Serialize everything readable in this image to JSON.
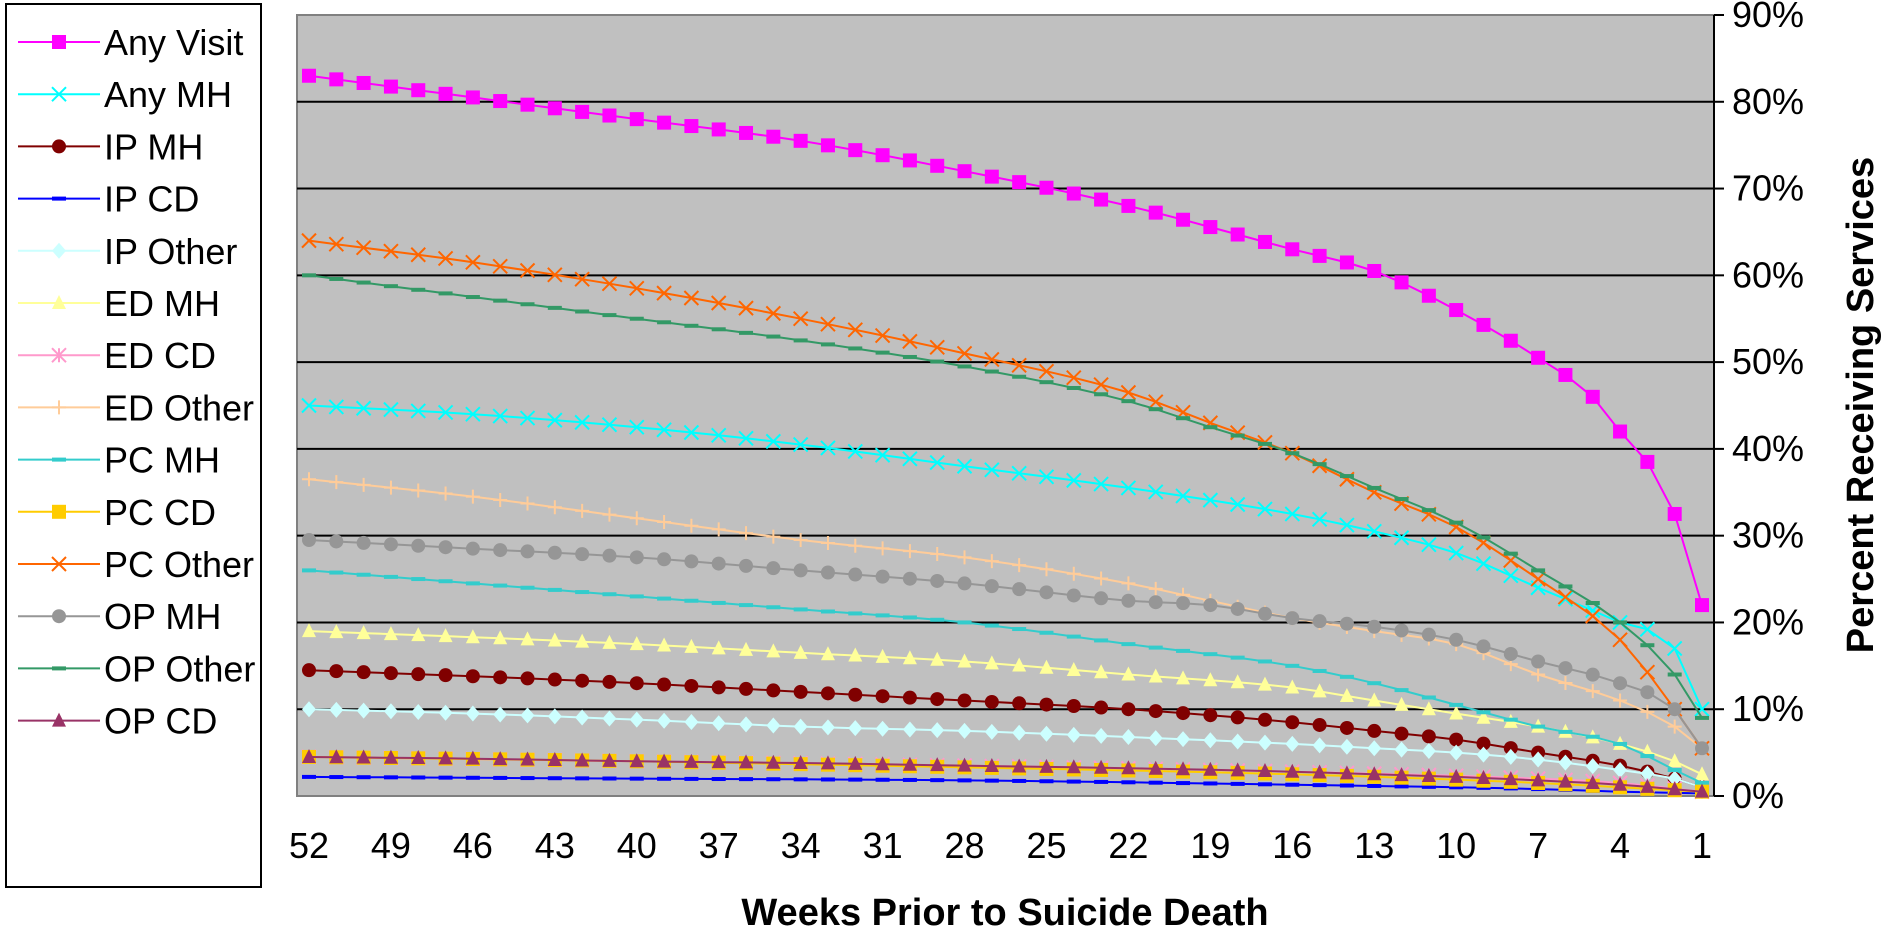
{
  "chart_data": {
    "type": "line",
    "xlabel": "Weeks Prior to Suicide Death",
    "ylabel": "Percent Receiving Services",
    "x_tick_labels": [
      "52",
      "49",
      "46",
      "43",
      "40",
      "37",
      "34",
      "31",
      "28",
      "25",
      "22",
      "19",
      "16",
      "13",
      "10",
      "7",
      "4",
      "1"
    ],
    "y_tick_labels": [
      "0%",
      "10%",
      "20%",
      "30%",
      "40%",
      "50%",
      "60%",
      "70%",
      "80%",
      "90%"
    ],
    "ylim": [
      0,
      90
    ],
    "xlim": [
      52,
      1
    ],
    "x_reversed": true,
    "grid": "horizontal",
    "legend_position": "left",
    "plot_background": "#c0c0c0",
    "series": [
      {
        "name": "Any Visit",
        "color": "#ff00ff",
        "marker": "square",
        "mode": "curve",
        "anchors": [
          [
            52,
            83
          ],
          [
            46,
            80.5
          ],
          [
            40,
            78
          ],
          [
            34,
            75.5
          ],
          [
            28,
            72
          ],
          [
            22,
            68
          ],
          [
            16,
            63
          ],
          [
            13,
            60.5
          ],
          [
            10,
            56
          ],
          [
            7,
            50.5
          ],
          [
            5,
            46
          ],
          [
            4,
            42
          ],
          [
            3,
            38.5
          ],
          [
            2,
            32.5
          ],
          [
            1,
            22
          ]
        ]
      },
      {
        "name": "Any MH",
        "color": "#00ffff",
        "marker": "x",
        "mode": "curve",
        "anchors": [
          [
            52,
            45
          ],
          [
            46,
            44
          ],
          [
            40,
            42.5
          ],
          [
            34,
            40.5
          ],
          [
            28,
            38
          ],
          [
            22,
            35.5
          ],
          [
            16,
            32.5
          ],
          [
            13,
            30.5
          ],
          [
            10,
            28
          ],
          [
            7,
            24
          ],
          [
            4,
            20
          ],
          [
            2,
            17
          ],
          [
            1,
            10
          ]
        ]
      },
      {
        "name": "IP MH",
        "color": "#800000",
        "marker": "circle",
        "mode": "curve",
        "anchors": [
          [
            52,
            14.5
          ],
          [
            46,
            13.8
          ],
          [
            40,
            13
          ],
          [
            34,
            12
          ],
          [
            28,
            11
          ],
          [
            22,
            10
          ],
          [
            16,
            8.5
          ],
          [
            13,
            7.5
          ],
          [
            10,
            6.5
          ],
          [
            7,
            5
          ],
          [
            4,
            3.5
          ],
          [
            2,
            2
          ],
          [
            1,
            1
          ]
        ]
      },
      {
        "name": "IP CD",
        "color": "#0000ff",
        "marker": "dash",
        "mode": "curve",
        "anchors": [
          [
            52,
            2.2
          ],
          [
            40,
            2
          ],
          [
            28,
            1.8
          ],
          [
            16,
            1.3
          ],
          [
            7,
            0.8
          ],
          [
            4,
            0.5
          ],
          [
            1,
            0.3
          ]
        ]
      },
      {
        "name": "IP Other",
        "color": "#ccffff",
        "marker": "diamond",
        "mode": "curve",
        "anchors": [
          [
            52,
            10
          ],
          [
            46,
            9.5
          ],
          [
            40,
            8.8
          ],
          [
            34,
            8
          ],
          [
            28,
            7.5
          ],
          [
            22,
            6.8
          ],
          [
            16,
            6
          ],
          [
            13,
            5.5
          ],
          [
            10,
            5
          ],
          [
            7,
            4.2
          ],
          [
            4,
            3
          ],
          [
            2,
            2
          ],
          [
            1,
            1
          ]
        ]
      },
      {
        "name": "ED MH",
        "color": "#ffff99",
        "marker": "triangle",
        "mode": "curve",
        "anchors": [
          [
            52,
            19
          ],
          [
            46,
            18.3
          ],
          [
            40,
            17.5
          ],
          [
            34,
            16.5
          ],
          [
            28,
            15.5
          ],
          [
            22,
            14
          ],
          [
            16,
            12.5
          ],
          [
            13,
            11
          ],
          [
            10,
            9.5
          ],
          [
            7,
            8
          ],
          [
            4,
            6
          ],
          [
            2,
            4
          ],
          [
            1,
            2.5
          ]
        ]
      },
      {
        "name": "ED CD",
        "color": "#ff99cc",
        "marker": "asterisk",
        "mode": "curve",
        "anchors": [
          [
            52,
            4.5
          ],
          [
            40,
            4
          ],
          [
            28,
            3.5
          ],
          [
            16,
            2.8
          ],
          [
            7,
            2
          ],
          [
            4,
            1.5
          ],
          [
            1,
            0.5
          ]
        ]
      },
      {
        "name": "ED Other",
        "color": "#ffcc99",
        "marker": "plus",
        "mode": "curve",
        "anchors": [
          [
            52,
            36.5
          ],
          [
            46,
            34.5
          ],
          [
            40,
            32
          ],
          [
            34,
            29.5
          ],
          [
            28,
            27.5
          ],
          [
            22,
            24.5
          ],
          [
            19,
            22.5
          ],
          [
            16,
            20.5
          ],
          [
            13,
            19
          ],
          [
            10,
            17.5
          ],
          [
            7,
            14
          ],
          [
            4,
            11
          ],
          [
            2,
            8
          ],
          [
            1,
            5.5
          ]
        ]
      },
      {
        "name": "PC MH",
        "color": "#33cccc",
        "marker": "dash",
        "mode": "curve",
        "anchors": [
          [
            52,
            26
          ],
          [
            46,
            24.5
          ],
          [
            40,
            23
          ],
          [
            34,
            21.5
          ],
          [
            28,
            20
          ],
          [
            22,
            17.5
          ],
          [
            16,
            15
          ],
          [
            13,
            13
          ],
          [
            10,
            10.5
          ],
          [
            7,
            8
          ],
          [
            4,
            6
          ],
          [
            2,
            3
          ],
          [
            1,
            1.5
          ]
        ]
      },
      {
        "name": "PC CD",
        "color": "#ffcc00",
        "marker": "square",
        "mode": "curve",
        "anchors": [
          [
            52,
            4.5
          ],
          [
            40,
            4
          ],
          [
            28,
            3.3
          ],
          [
            16,
            2.5
          ],
          [
            7,
            1.5
          ],
          [
            4,
            1
          ],
          [
            1,
            0.5
          ]
        ]
      },
      {
        "name": "PC Other",
        "color": "#ff6600",
        "marker": "x",
        "mode": "curve",
        "anchors": [
          [
            52,
            64
          ],
          [
            46,
            61.5
          ],
          [
            40,
            58.5
          ],
          [
            34,
            55
          ],
          [
            28,
            51
          ],
          [
            22,
            46.5
          ],
          [
            19,
            43
          ],
          [
            16,
            39.5
          ],
          [
            13,
            35
          ],
          [
            10,
            31
          ],
          [
            7,
            25
          ],
          [
            4,
            18
          ],
          [
            2,
            10
          ],
          [
            1,
            5.5
          ]
        ]
      },
      {
        "name": "OP MH",
        "color": "#969696",
        "marker": "circle",
        "mode": "curve",
        "anchors": [
          [
            52,
            29.5
          ],
          [
            46,
            28.5
          ],
          [
            40,
            27.5
          ],
          [
            34,
            26
          ],
          [
            28,
            24.5
          ],
          [
            22,
            22.5
          ],
          [
            19,
            22
          ],
          [
            16,
            20.5
          ],
          [
            13,
            19.5
          ],
          [
            10,
            18
          ],
          [
            7,
            15.5
          ],
          [
            4,
            13
          ],
          [
            2,
            10
          ],
          [
            1,
            5.5
          ]
        ]
      },
      {
        "name": "OP Other",
        "color": "#339966",
        "marker": "dash",
        "mode": "curve",
        "anchors": [
          [
            52,
            60
          ],
          [
            46,
            57.5
          ],
          [
            40,
            55
          ],
          [
            34,
            52.5
          ],
          [
            28,
            49.5
          ],
          [
            22,
            45.5
          ],
          [
            19,
            42.5
          ],
          [
            16,
            39.5
          ],
          [
            13,
            35.5
          ],
          [
            10,
            31.5
          ],
          [
            7,
            26
          ],
          [
            4,
            20
          ],
          [
            2,
            14
          ],
          [
            1,
            9
          ]
        ]
      },
      {
        "name": "OP CD",
        "color": "#993366",
        "marker": "triangle",
        "mode": "curve",
        "anchors": [
          [
            52,
            4.5
          ],
          [
            46,
            4.3
          ],
          [
            40,
            4
          ],
          [
            34,
            3.8
          ],
          [
            28,
            3.5
          ],
          [
            22,
            3.2
          ],
          [
            16,
            2.8
          ],
          [
            13,
            2.5
          ],
          [
            10,
            2.2
          ],
          [
            7,
            1.8
          ],
          [
            4,
            1.3
          ],
          [
            1,
            0.5
          ]
        ]
      }
    ]
  }
}
